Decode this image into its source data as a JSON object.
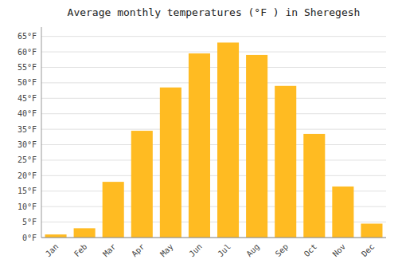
{
  "chart_data": {
    "type": "bar",
    "title": "Average monthly temperatures (°F ) in Sheregesh",
    "categories": [
      "Jan",
      "Feb",
      "Mar",
      "Apr",
      "May",
      "Jun",
      "Jul",
      "Aug",
      "Sep",
      "Oct",
      "Nov",
      "Dec"
    ],
    "values": [
      1,
      3,
      18,
      34.5,
      48.5,
      59.5,
      63,
      59,
      49,
      33.5,
      16.5,
      4.5
    ],
    "color": "#FFBB22",
    "ylim": [
      0,
      68
    ],
    "yticks": [
      {
        "value": 0,
        "label": "0°F"
      },
      {
        "value": 5,
        "label": "5°F"
      },
      {
        "value": 10,
        "label": "10°F"
      },
      {
        "value": 15,
        "label": "15°F"
      },
      {
        "value": 20,
        "label": "20°F"
      },
      {
        "value": 25,
        "label": "25°F"
      },
      {
        "value": 30,
        "label": "30°F"
      },
      {
        "value": 35,
        "label": "35°F"
      },
      {
        "value": 40,
        "label": "40°F"
      },
      {
        "value": 45,
        "label": "45°F"
      },
      {
        "value": 50,
        "label": "50°F"
      },
      {
        "value": 55,
        "label": "55°F"
      },
      {
        "value": 60,
        "label": "60°F"
      },
      {
        "value": 65,
        "label": "65°F"
      }
    ],
    "grid": true
  }
}
